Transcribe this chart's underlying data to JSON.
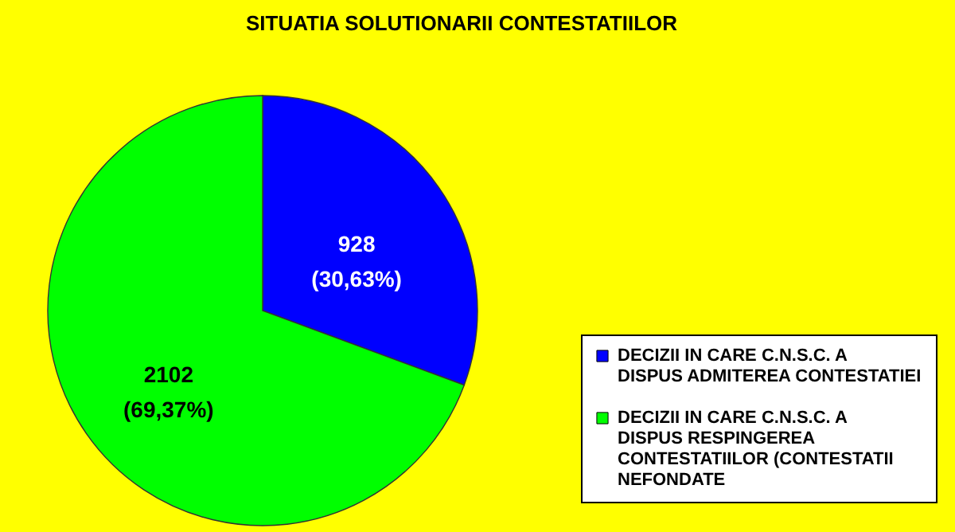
{
  "chart_data": {
    "type": "pie",
    "title": "SITUATIA SOLUTIONARII CONTESTATIILOR",
    "categories": [
      "DECIZII IN CARE C.N.S.C. A DISPUS ADMITEREA CONTESTATIEI",
      "DECIZII IN CARE C.N.S.C. A DISPUS RESPINGEREA CONTESTATIILOR (CONTESTATII NEFONDATE"
    ],
    "values": [
      928,
      2102
    ],
    "colors": [
      "#0000ff",
      "#00ff00"
    ],
    "value_labels": [
      "928\n(30,63%)",
      "2102\n(69,37%)"
    ],
    "legend": "bottom right"
  }
}
